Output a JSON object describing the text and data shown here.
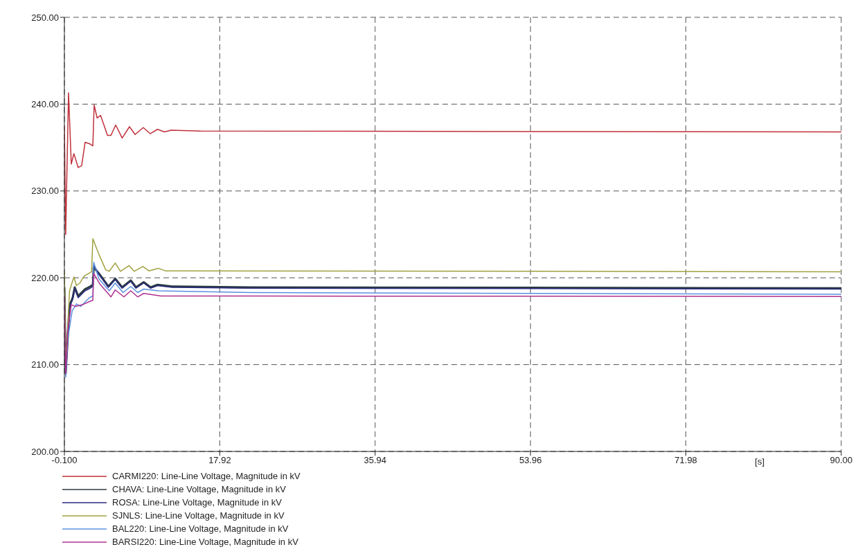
{
  "chart_data": {
    "type": "line",
    "xlabel": "[s]",
    "xlim": [
      -0.1,
      90
    ],
    "xticks": [
      {
        "value": -0.1,
        "label": "-0.100"
      },
      {
        "value": 17.92,
        "label": "17.92"
      },
      {
        "value": 35.94,
        "label": "35.94"
      },
      {
        "value": 53.96,
        "label": "53.96"
      },
      {
        "value": 71.98,
        "label": "71.98"
      },
      {
        "value": 90,
        "label": "90.00"
      }
    ],
    "ylim": [
      200,
      250
    ],
    "yticks": [
      {
        "value": 200,
        "label": "200.00"
      },
      {
        "value": 210,
        "label": "210.00"
      },
      {
        "value": 220,
        "label": "220.00"
      },
      {
        "value": 230,
        "label": "230.00"
      },
      {
        "value": 240,
        "label": "240.00"
      },
      {
        "value": 250,
        "label": "250.00"
      }
    ],
    "grid": true,
    "legend": "bottom left",
    "marker": "none",
    "line_style": "solid",
    "series": [
      {
        "name": "CARMI220: Line-Line Voltage, Magnitude in kV",
        "color": "#c0303a",
        "x": [
          -0.1,
          0.05,
          0.38,
          0.7,
          1.0,
          1.5,
          1.9,
          2.3,
          2.9,
          3.2,
          3.35,
          3.7,
          4.1,
          4.9,
          5.3,
          5.85,
          6.6,
          7.45,
          8.1,
          9.05,
          9.85,
          10.7,
          11.5,
          12.3,
          15.7,
          90
        ],
        "values": [
          237.5,
          225,
          241.3,
          233.1,
          234.3,
          232.7,
          232.9,
          235.6,
          235.4,
          235.2,
          239.9,
          238.4,
          238.7,
          236.4,
          236.4,
          237.6,
          236.1,
          237.4,
          236.5,
          237.3,
          236.6,
          237.1,
          236.8,
          237,
          236.9,
          236.8
        ]
      },
      {
        "name": "CHAVA: Line-Line Voltage, Magnitude in kV",
        "color": "#2a3a40",
        "x": [
          -0.1,
          0.05,
          0.5,
          0.86,
          1.1,
          1.5,
          2.3,
          2.9,
          3.2,
          3.3,
          3.9,
          4.2,
          5.0,
          5.8,
          6.6,
          7.6,
          8.2,
          9.1,
          9.9,
          10.7,
          12.4,
          21.5,
          90
        ],
        "values": [
          218.9,
          209,
          216.8,
          217.7,
          218.9,
          217.9,
          218.7,
          219,
          219.2,
          221.2,
          220.5,
          220.1,
          219,
          219.9,
          218.9,
          219.7,
          218.9,
          219.5,
          218.9,
          219.2,
          219,
          218.9,
          218.8
        ]
      },
      {
        "name": "ROSA: Line-Line Voltage, Magnitude in kV",
        "color": "#2a2a80",
        "x": [
          -0.1,
          0.05,
          0.5,
          0.86,
          1.1,
          1.5,
          2.3,
          2.9,
          3.2,
          3.3,
          3.9,
          4.2,
          5.0,
          5.8,
          6.6,
          7.6,
          8.2,
          9.1,
          9.9,
          10.7,
          12.4,
          21.5,
          90
        ],
        "values": [
          218.8,
          208.8,
          216.6,
          217.5,
          218.7,
          217.7,
          218.5,
          218.8,
          219,
          221.5,
          220.4,
          220,
          218.9,
          219.8,
          218.8,
          219.6,
          218.8,
          219.4,
          218.8,
          219.1,
          218.9,
          218.8,
          218.7
        ]
      },
      {
        "name": "SJNLS: Line-Line Voltage, Magnitude in kV",
        "color": "#a0a040",
        "x": [
          -0.1,
          0.05,
          0.5,
          1.0,
          1.3,
          1.7,
          2.2,
          2.9,
          3.05,
          3.2,
          3.9,
          4.7,
          5.1,
          5.8,
          6.4,
          7.4,
          8.0,
          9.0,
          9.7,
          10.8,
          11.6,
          90
        ],
        "values": [
          220.7,
          210,
          218.5,
          220.1,
          219.1,
          219.4,
          220.2,
          220.6,
          220.7,
          224.5,
          222.7,
          220.9,
          220.75,
          221.7,
          220.75,
          221.4,
          220.75,
          221.3,
          220.8,
          221.1,
          220.8,
          220.7
        ]
      },
      {
        "name": "BAL220: Line-Line Voltage, Magnitude in kV",
        "color": "#5a90e0",
        "x": [
          0.05,
          0.3,
          0.8,
          1.3,
          1.8,
          2.8,
          3.2,
          3.3,
          3.9,
          5.1,
          5.8,
          6.7,
          7.6,
          8.4,
          9.1,
          10.8,
          21.5,
          90
        ],
        "values": [
          208.5,
          213,
          216.2,
          217,
          216.7,
          217.7,
          217.9,
          221.8,
          219.9,
          218.5,
          219.4,
          218.3,
          219,
          218.3,
          218.7,
          218.5,
          218.3,
          218.1
        ]
      },
      {
        "name": "BARSI220: Line-Line Voltage, Magnitude in kV",
        "color": "#b03090",
        "x": [
          -0.1,
          0.05,
          0.3,
          0.7,
          1.2,
          2.0,
          2.9,
          3.2,
          3.3,
          4.0,
          5.3,
          5.8,
          6.8,
          7.6,
          8.4,
          9.1,
          11.1,
          21.5,
          90
        ],
        "values": [
          217.9,
          209,
          214,
          216.9,
          216.7,
          216.9,
          217.3,
          217.4,
          220.5,
          219.3,
          217.8,
          218.6,
          217.8,
          218.5,
          217.8,
          218.2,
          217.9,
          217.9,
          217.85
        ]
      }
    ]
  }
}
